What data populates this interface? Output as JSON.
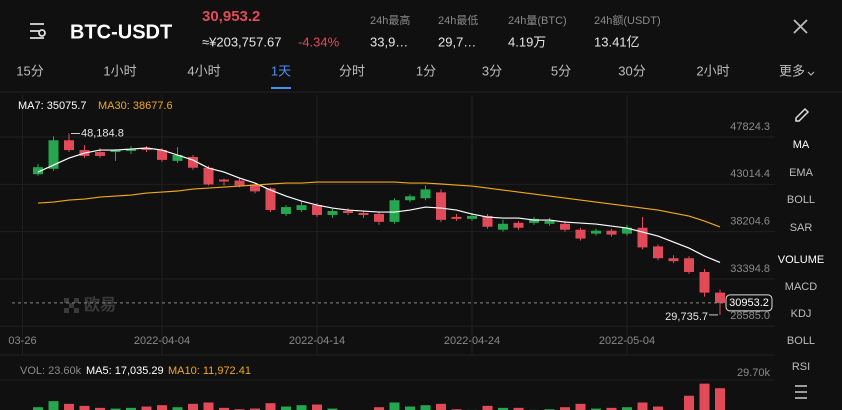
{
  "header": {
    "symbol": "BTC-USDT",
    "price": "30,953.2",
    "cny_price": "≈¥203,757.67",
    "change": "-4.34%",
    "stats": [
      {
        "label": "24h最高",
        "value": "33,9…"
      },
      {
        "label": "24h最低",
        "value": "29,7…"
      },
      {
        "label": "24h量(BTC)",
        "value": "4.19万"
      },
      {
        "label": "24h额(USDT)",
        "value": "13.41亿"
      }
    ]
  },
  "tabs": [
    "15分",
    "1小时",
    "4小时",
    "1天",
    "分时",
    "1分",
    "3分",
    "5分",
    "30分",
    "2小时",
    "更多"
  ],
  "active_tab": "1天",
  "indicators": [
    "MA",
    "EMA",
    "BOLL",
    "SAR",
    "VOLUME",
    "MACD",
    "KDJ",
    "BOLL",
    "RSI"
  ],
  "active_indicators": [
    "MA",
    "VOLUME"
  ],
  "watermark": "欧易",
  "chart_data": [
    {
      "type": "candlestick",
      "categories": [
        "2022-03-27",
        "2022-03-28",
        "2022-03-29",
        "2022-03-30",
        "2022-03-31",
        "2022-04-01",
        "2022-04-02",
        "2022-04-03",
        "2022-04-04",
        "2022-04-05",
        "2022-04-06",
        "2022-04-07",
        "2022-04-08",
        "2022-04-09",
        "2022-04-10",
        "2022-04-11",
        "2022-04-12",
        "2022-04-13",
        "2022-04-14",
        "2022-04-15",
        "2022-04-16",
        "2022-04-17",
        "2022-04-18",
        "2022-04-19",
        "2022-04-20",
        "2022-04-21",
        "2022-04-22",
        "2022-04-23",
        "2022-04-24",
        "2022-04-25",
        "2022-04-26",
        "2022-04-27",
        "2022-04-28",
        "2022-04-29",
        "2022-04-30",
        "2022-05-01",
        "2022-05-02",
        "2022-05-03",
        "2022-05-04",
        "2022-05-05",
        "2022-05-06",
        "2022-05-07",
        "2022-05-08",
        "2022-05-09",
        "2022-05-10"
      ],
      "open": [
        44040,
        44600,
        47500,
        46500,
        46300,
        46300,
        46400,
        46700,
        46500,
        45400,
        45800,
        44700,
        43500,
        43400,
        43000,
        42600,
        40000,
        40400,
        40900,
        39900,
        40300,
        40100,
        40000,
        39200,
        41400,
        41600,
        42200,
        39700,
        39500,
        39800,
        38400,
        39100,
        39100,
        39000,
        39000,
        38400,
        38000,
        38300,
        38000,
        38600,
        36700,
        35500,
        35500,
        34100,
        32000
      ],
      "high": [
        45100,
        47900,
        48184.8,
        47000,
        46700,
        46600,
        46900,
        46900,
        46700,
        46800,
        46000,
        44900,
        43600,
        43700,
        43200,
        42700,
        40900,
        41300,
        41100,
        40500,
        40600,
        40300,
        40200,
        41600,
        42000,
        42900,
        42500,
        40000,
        40100,
        40000,
        39400,
        39300,
        39700,
        39600,
        39300,
        38600,
        38500,
        38500,
        38900,
        39700,
        36900,
        35800,
        35700,
        34400,
        32300
      ],
      "low": [
        43900,
        44400,
        46300,
        45700,
        45700,
        45400,
        46100,
        46300,
        45300,
        45200,
        44500,
        42900,
        42900,
        42700,
        42100,
        40200,
        39800,
        40200,
        39700,
        39600,
        39900,
        39600,
        38900,
        39000,
        41200,
        41400,
        39200,
        39300,
        39300,
        38500,
        38200,
        38400,
        38900,
        38800,
        38200,
        37300,
        37800,
        37700,
        37800,
        36400,
        35300,
        35000,
        33900,
        31600,
        29735.7
      ],
      "close": [
        44760,
        47500,
        46500,
        45900,
        45900,
        46500,
        46600,
        46500,
        45500,
        46000,
        44700,
        43000,
        43300,
        42900,
        42300,
        40400,
        40700,
        40900,
        39900,
        40300,
        40100,
        39900,
        39200,
        41400,
        41800,
        42500,
        39400,
        39500,
        39800,
        38700,
        39000,
        38600,
        39500,
        39300,
        38400,
        37500,
        38300,
        37900,
        38600,
        36600,
        35500,
        35200,
        34100,
        32000,
        30953.2
      ],
      "up_color": "#25a750",
      "down_color": "#e04a59",
      "series": [
        {
          "name": "MA7: 35075.7",
          "color": "#ffffff",
          "values": [
            44265,
            44977,
            45689,
            46197,
            46502,
            46502,
            46604,
            46706,
            46502,
            45994,
            45485,
            44671,
            44265,
            43655,
            43146,
            42434,
            41824,
            41316,
            40909,
            40604,
            40400,
            40298,
            40197,
            40197,
            40400,
            40705,
            40604,
            40400,
            39993,
            39688,
            39586,
            39586,
            39383,
            39383,
            39180,
            39078,
            38976,
            38773,
            38570,
            38163,
            37756,
            37146,
            36536,
            35722,
            35075.7
          ]
        },
        {
          "name": "MA30: 38677.6",
          "color": "#f0a81c",
          "values": [
            41112,
            41214,
            41417,
            41519,
            41722,
            41824,
            41926,
            42129,
            42231,
            42333,
            42536,
            42638,
            42739,
            42841,
            42943,
            43045,
            43146,
            43146,
            43248,
            43248,
            43248,
            43248,
            43248,
            43248,
            43146,
            43146,
            43045,
            42943,
            42841,
            42638,
            42434,
            42231,
            42027,
            41824,
            41621,
            41417,
            41214,
            41011,
            40807,
            40604,
            40400,
            40095,
            39790,
            39282,
            38677.6
          ]
        }
      ],
      "ylim": [
        28200,
        52100
      ],
      "yticks": [
        47824.3,
        43014.4,
        38204.6,
        33394.8,
        {
          "value": 28585,
          "label": "28585.0"
        }
      ],
      "xticks": [
        {
          "value": "2022-03-26",
          "label": "03-26"
        },
        "2022-04-04",
        "2022-04-14",
        "2022-04-24",
        "2022-05-04"
      ],
      "last_price": 30953.2,
      "max_label": "48,184.8",
      "min_label": "29,735.7",
      "grid": true
    },
    {
      "type": "bar",
      "series": [
        {
          "name": "VOL: 23.60k",
          "values": [
            9500,
            14000,
            12000,
            10500,
            9000,
            8500,
            9000,
            10000,
            11000,
            9500,
            12000,
            13000,
            9000,
            8000,
            8500,
            12500,
            10000,
            11000,
            11500,
            8500,
            7000,
            6500,
            9500,
            13000,
            10000,
            11000,
            12000,
            8000,
            7500,
            10500,
            9000,
            9000,
            7500,
            8000,
            9500,
            12000,
            8500,
            9000,
            9500,
            13000,
            10000,
            6600,
            18000,
            27000,
            23600
          ]
        }
      ],
      "ma_labels": [
        {
          "name": "MA5: 17,035.29",
          "color": "#ffffff"
        },
        {
          "name": "MA10: 11,972.41",
          "color": "#f0a81c"
        }
      ],
      "ylim": [
        0,
        29700
      ],
      "yticks": [
        {
          "value": 29700,
          "label": "29.70k"
        }
      ]
    }
  ]
}
